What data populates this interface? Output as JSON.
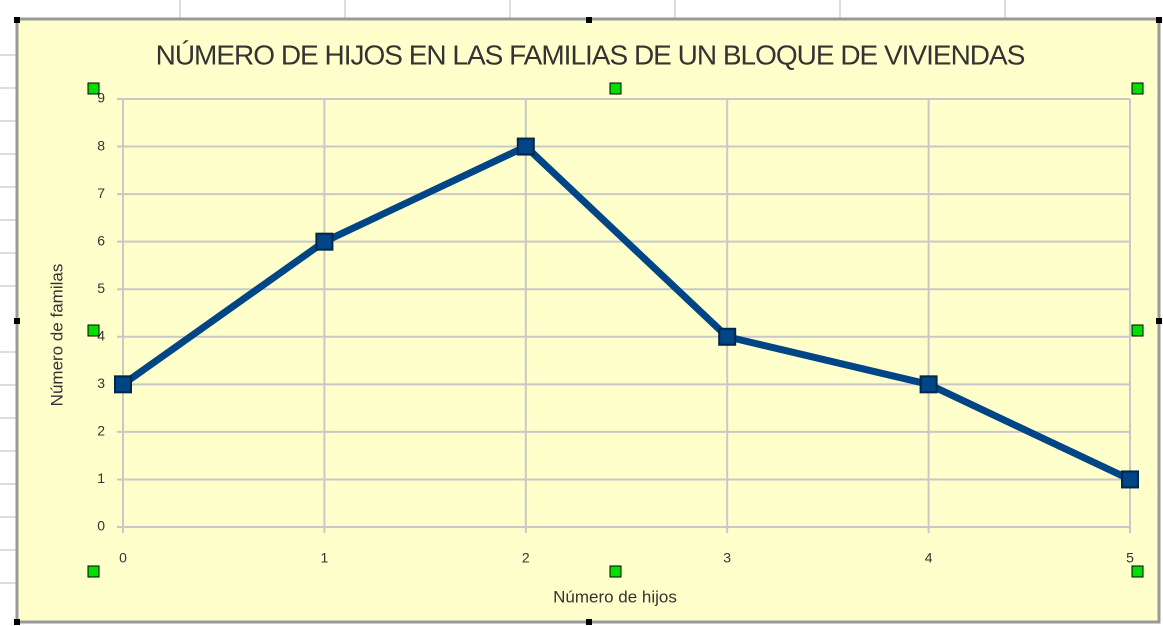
{
  "chart_data": {
    "type": "line",
    "title": "NÚMERO DE HIJOS EN LAS FAMILIAS DE UN BLOQUE DE VIVIENDAS",
    "x_label": "Número de hijos",
    "y_label": "Número de familas",
    "x": [
      0,
      1,
      2,
      3,
      4,
      5
    ],
    "series": [
      {
        "name": "Número de familas",
        "color": "#004586",
        "values": [
          3,
          6,
          8,
          4,
          3,
          1
        ]
      }
    ],
    "xlim": [
      0,
      5
    ],
    "xticks": [
      0,
      1,
      2,
      3,
      4,
      5
    ],
    "ylim": [
      0,
      9
    ],
    "yticks": [
      0,
      1,
      2,
      3,
      4,
      5,
      6,
      7,
      8,
      9
    ],
    "grid": true
  }
}
